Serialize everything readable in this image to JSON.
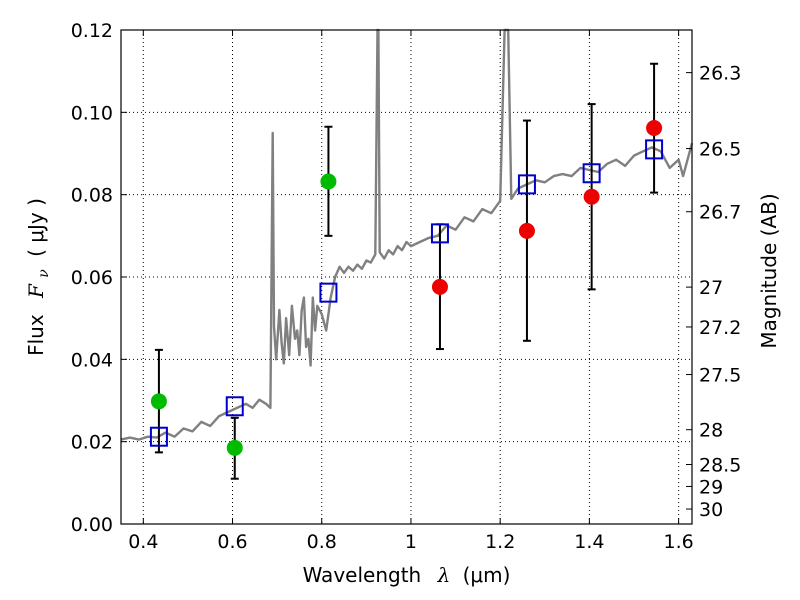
{
  "chart_data": {
    "type": "scatter",
    "xlabel": "Wavelength",
    "xlabel_symbol": "λ",
    "xlabel_unit": "(μm)",
    "ylabel": "Flux",
    "ylabel_symbol": "F",
    "ylabel_subscript": "ν",
    "ylabel_unit": "( μJy )",
    "y2label": "Magnitude (AB)",
    "xlim": [
      0.35,
      1.63
    ],
    "ylim": [
      0.0,
      0.12
    ],
    "grid": true,
    "x_ticks": [
      0.4,
      0.6,
      0.8,
      1.0,
      1.2,
      1.4,
      1.6
    ],
    "x_tick_labels": [
      "0.4",
      "0.6",
      "0.8",
      "1",
      "1.2",
      "1.4",
      "1.6"
    ],
    "y_ticks": [
      0.0,
      0.02,
      0.04,
      0.06,
      0.08,
      0.1,
      0.12
    ],
    "y_tick_labels": [
      "0.00",
      "0.02",
      "0.04",
      "0.06",
      "0.08",
      "0.10",
      "0.12"
    ],
    "y2_ticks": [
      26.3,
      26.5,
      26.7,
      27,
      27.2,
      27.5,
      28,
      28.5,
      29,
      30
    ],
    "y2_tick_labels": [
      "26.3",
      "26.5",
      "26.7",
      "27",
      "27.2",
      "27.5",
      "28",
      "28.5",
      "29",
      "30"
    ],
    "colors": {
      "spectrum": "#808080",
      "green": "#00bb00",
      "red": "#ee0000",
      "model": "#0000cc",
      "errorbar": "#000000"
    },
    "series": [
      {
        "name": "spectrum",
        "style": "line",
        "points": [
          [
            0.35,
            0.0205
          ],
          [
            0.37,
            0.021
          ],
          [
            0.39,
            0.0205
          ],
          [
            0.41,
            0.0212
          ],
          [
            0.43,
            0.021
          ],
          [
            0.45,
            0.0222
          ],
          [
            0.47,
            0.0212
          ],
          [
            0.49,
            0.0232
          ],
          [
            0.51,
            0.0225
          ],
          [
            0.53,
            0.0248
          ],
          [
            0.55,
            0.0238
          ],
          [
            0.57,
            0.0262
          ],
          [
            0.59,
            0.0272
          ],
          [
            0.61,
            0.0282
          ],
          [
            0.63,
            0.0292
          ],
          [
            0.645,
            0.0282
          ],
          [
            0.66,
            0.0302
          ],
          [
            0.675,
            0.0292
          ],
          [
            0.685,
            0.0282
          ],
          [
            0.69,
            0.095
          ],
          [
            0.693,
            0.048
          ],
          [
            0.698,
            0.04
          ],
          [
            0.705,
            0.052
          ],
          [
            0.71,
            0.044
          ],
          [
            0.715,
            0.039
          ],
          [
            0.72,
            0.05
          ],
          [
            0.727,
            0.041
          ],
          [
            0.733,
            0.053
          ],
          [
            0.74,
            0.045
          ],
          [
            0.745,
            0.047
          ],
          [
            0.75,
            0.041
          ],
          [
            0.755,
            0.052
          ],
          [
            0.76,
            0.055
          ],
          [
            0.765,
            0.043
          ],
          [
            0.77,
            0.045
          ],
          [
            0.775,
            0.0385
          ],
          [
            0.78,
            0.055
          ],
          [
            0.785,
            0.047
          ],
          [
            0.79,
            0.053
          ],
          [
            0.8,
            0.051
          ],
          [
            0.81,
            0.047
          ],
          [
            0.82,
            0.055
          ],
          [
            0.83,
            0.06
          ],
          [
            0.84,
            0.0625
          ],
          [
            0.85,
            0.061
          ],
          [
            0.86,
            0.0625
          ],
          [
            0.87,
            0.0615
          ],
          [
            0.88,
            0.063
          ],
          [
            0.89,
            0.062
          ],
          [
            0.9,
            0.064
          ],
          [
            0.91,
            0.0635
          ],
          [
            0.92,
            0.0655
          ],
          [
            0.925,
            0.12
          ],
          [
            0.927,
            0.12
          ],
          [
            0.93,
            0.066
          ],
          [
            0.94,
            0.0645
          ],
          [
            0.95,
            0.0665
          ],
          [
            0.96,
            0.0655
          ],
          [
            0.97,
            0.0675
          ],
          [
            0.98,
            0.0665
          ],
          [
            0.99,
            0.0685
          ],
          [
            1.0,
            0.0675
          ],
          [
            1.02,
            0.0685
          ],
          [
            1.04,
            0.0695
          ],
          [
            1.06,
            0.07
          ],
          [
            1.08,
            0.0725
          ],
          [
            1.1,
            0.0715
          ],
          [
            1.12,
            0.0745
          ],
          [
            1.14,
            0.0735
          ],
          [
            1.16,
            0.0765
          ],
          [
            1.18,
            0.0755
          ],
          [
            1.2,
            0.0785
          ],
          [
            1.21,
            0.12
          ],
          [
            1.218,
            0.12
          ],
          [
            1.225,
            0.079
          ],
          [
            1.24,
            0.0815
          ],
          [
            1.26,
            0.0825
          ],
          [
            1.28,
            0.0835
          ],
          [
            1.3,
            0.083
          ],
          [
            1.32,
            0.0845
          ],
          [
            1.34,
            0.085
          ],
          [
            1.36,
            0.0845
          ],
          [
            1.38,
            0.0865
          ],
          [
            1.4,
            0.086
          ],
          [
            1.42,
            0.0855
          ],
          [
            1.44,
            0.0875
          ],
          [
            1.46,
            0.0885
          ],
          [
            1.48,
            0.087
          ],
          [
            1.5,
            0.0895
          ],
          [
            1.52,
            0.0905
          ],
          [
            1.54,
            0.0915
          ],
          [
            1.56,
            0.0905
          ],
          [
            1.58,
            0.0865
          ],
          [
            1.6,
            0.0885
          ],
          [
            1.61,
            0.0845
          ],
          [
            1.63,
            0.0925
          ]
        ]
      },
      {
        "name": "green",
        "style": "marker-circle",
        "points": [
          {
            "x": 0.435,
            "y": 0.0298,
            "yerr_low": 0.0174,
            "yerr_high": 0.0423
          },
          {
            "x": 0.605,
            "y": 0.0185,
            "yerr_low": 0.011,
            "yerr_high": 0.0258
          },
          {
            "x": 0.815,
            "y": 0.0832,
            "yerr_low": 0.07,
            "yerr_high": 0.0965
          }
        ]
      },
      {
        "name": "red",
        "style": "marker-circle",
        "points": [
          {
            "x": 1.065,
            "y": 0.0576,
            "yerr_low": 0.0425,
            "yerr_high": 0.0728
          },
          {
            "x": 1.26,
            "y": 0.0712,
            "yerr_low": 0.0445,
            "yerr_high": 0.098
          },
          {
            "x": 1.405,
            "y": 0.0795,
            "yerr_low": 0.057,
            "yerr_high": 0.102
          },
          {
            "x": 1.545,
            "y": 0.0962,
            "yerr_low": 0.0805,
            "yerr_high": 0.1118
          }
        ]
      },
      {
        "name": "model",
        "style": "marker-square",
        "points": [
          {
            "x": 0.435,
            "y": 0.0212
          },
          {
            "x": 0.605,
            "y": 0.0286
          },
          {
            "x": 0.815,
            "y": 0.0562
          },
          {
            "x": 1.065,
            "y": 0.0706
          },
          {
            "x": 1.26,
            "y": 0.0825
          },
          {
            "x": 1.405,
            "y": 0.0852
          },
          {
            "x": 1.545,
            "y": 0.091
          }
        ]
      }
    ]
  }
}
